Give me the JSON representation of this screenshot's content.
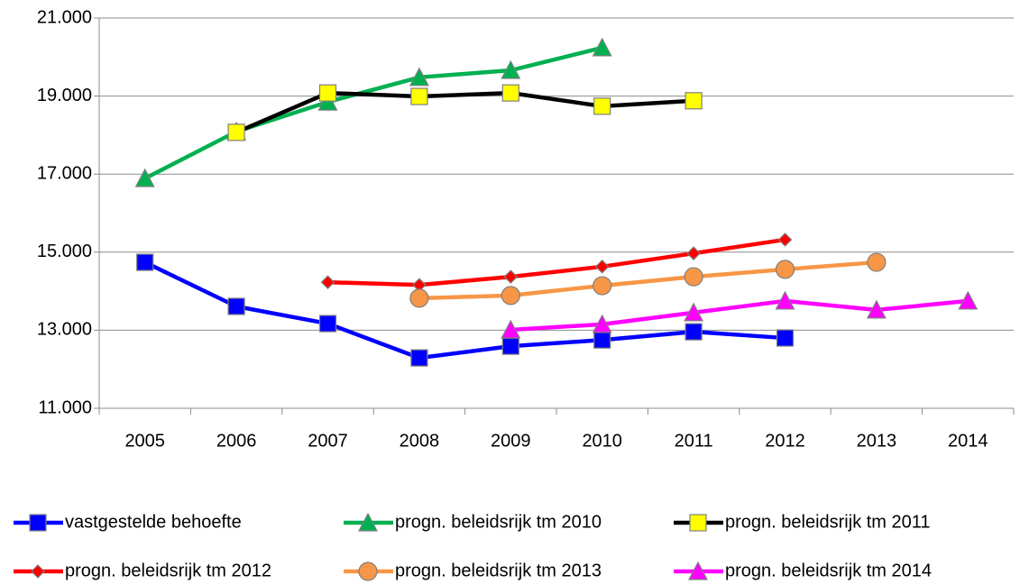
{
  "chart_data": {
    "type": "line",
    "categories": [
      "2005",
      "2006",
      "2007",
      "2008",
      "2009",
      "2010",
      "2011",
      "2012",
      "2013",
      "2014"
    ],
    "ylim": [
      11000,
      21000
    ],
    "yticks": [
      {
        "value": 11000,
        "label": "11.000"
      },
      {
        "value": 13000,
        "label": "13.000"
      },
      {
        "value": 15000,
        "label": "15.000"
      },
      {
        "value": 17000,
        "label": "17.000"
      },
      {
        "value": 19000,
        "label": "19.000"
      },
      {
        "value": 21000,
        "label": "21.000"
      }
    ],
    "grid": true,
    "legend": "bottom",
    "series": [
      {
        "name": "vastgestelde behoefte",
        "color": "#0000ff",
        "marker": "square",
        "marker_color": "#0000ff",
        "values": [
          14740,
          13610,
          13170,
          12290,
          12590,
          12750,
          12960,
          12800,
          null,
          null
        ]
      },
      {
        "name": "progn. beleidsrijk tm 2010",
        "color": "#00b050",
        "marker": "triangle",
        "marker_color": "#00b050",
        "values": [
          16890,
          18090,
          18850,
          19480,
          19660,
          20240,
          null,
          null,
          null,
          null
        ]
      },
      {
        "name": "progn. beleidsrijk tm 2011",
        "color": "#000000",
        "marker": "square",
        "marker_color": "#ffff00",
        "values": [
          null,
          18070,
          19080,
          18990,
          19080,
          18740,
          18880,
          null,
          null,
          null
        ]
      },
      {
        "name": "progn. beleidsrijk tm 2012",
        "color": "#ff0000",
        "marker": "diamond",
        "marker_color": "#ff0000",
        "values": [
          null,
          null,
          14230,
          14160,
          14370,
          14630,
          14970,
          15320,
          null,
          null
        ]
      },
      {
        "name": "progn. beleidsrijk tm 2013",
        "color": "#f79646",
        "marker": "circle",
        "marker_color": "#f79646",
        "values": [
          null,
          null,
          null,
          13820,
          13890,
          14140,
          14370,
          14560,
          14740,
          null
        ]
      },
      {
        "name": "progn. beleidsrijk tm 2014",
        "color": "#ff00ff",
        "marker": "triangle",
        "marker_color": "#ff00ff",
        "values": [
          null,
          null,
          null,
          null,
          13010,
          13150,
          13450,
          13750,
          13520,
          13750
        ]
      }
    ]
  }
}
